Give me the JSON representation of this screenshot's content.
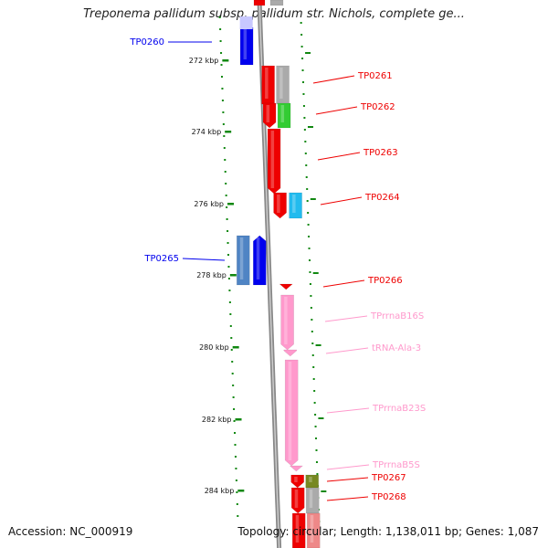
{
  "title": "Treponema pallidum subsp. pallidum str. Nichols, complete ge...",
  "accession": "Accession: NC_000919",
  "topology": "Topology: circular; Length: 1,138,011 bp; Genes: 1,087",
  "colors": {
    "forward_cds": "#ee0000",
    "reverse_cds": "#0000ee",
    "rna": "#ff99cc",
    "backbone": "#888888",
    "tick_marks": "#118811",
    "cog_blue": "#4f84c4",
    "cog_green": "#33cc33",
    "cog_cyan": "#22bbee",
    "cog_gray": "#aaaaaa",
    "cog_olive": "#778822"
  },
  "kbp_ticks": [
    "272 kbp",
    "274 kbp",
    "276 kbp",
    "278 kbp",
    "280 kbp",
    "282 kbp",
    "284 kbp"
  ],
  "features": [
    {
      "label": "TP0260",
      "strand": "reverse",
      "type": "CDS"
    },
    {
      "label": "TP0261",
      "strand": "forward",
      "type": "CDS"
    },
    {
      "label": "TP0262",
      "strand": "forward",
      "type": "CDS"
    },
    {
      "label": "TP0263",
      "strand": "forward",
      "type": "CDS"
    },
    {
      "label": "TP0264",
      "strand": "forward",
      "type": "CDS"
    },
    {
      "label": "TP0265",
      "strand": "reverse",
      "type": "CDS"
    },
    {
      "label": "TP0266",
      "strand": "forward",
      "type": "CDS"
    },
    {
      "label": "TPrrnaB16S",
      "strand": "forward",
      "type": "rRNA"
    },
    {
      "label": "tRNA-Ala-3",
      "strand": "forward",
      "type": "tRNA"
    },
    {
      "label": "TPrrnaB23S",
      "strand": "forward",
      "type": "rRNA"
    },
    {
      "label": "TPrrnaB5S",
      "strand": "forward",
      "type": "rRNA"
    },
    {
      "label": "TP0267",
      "strand": "forward",
      "type": "CDS"
    },
    {
      "label": "TP0268",
      "strand": "forward",
      "type": "CDS"
    }
  ]
}
